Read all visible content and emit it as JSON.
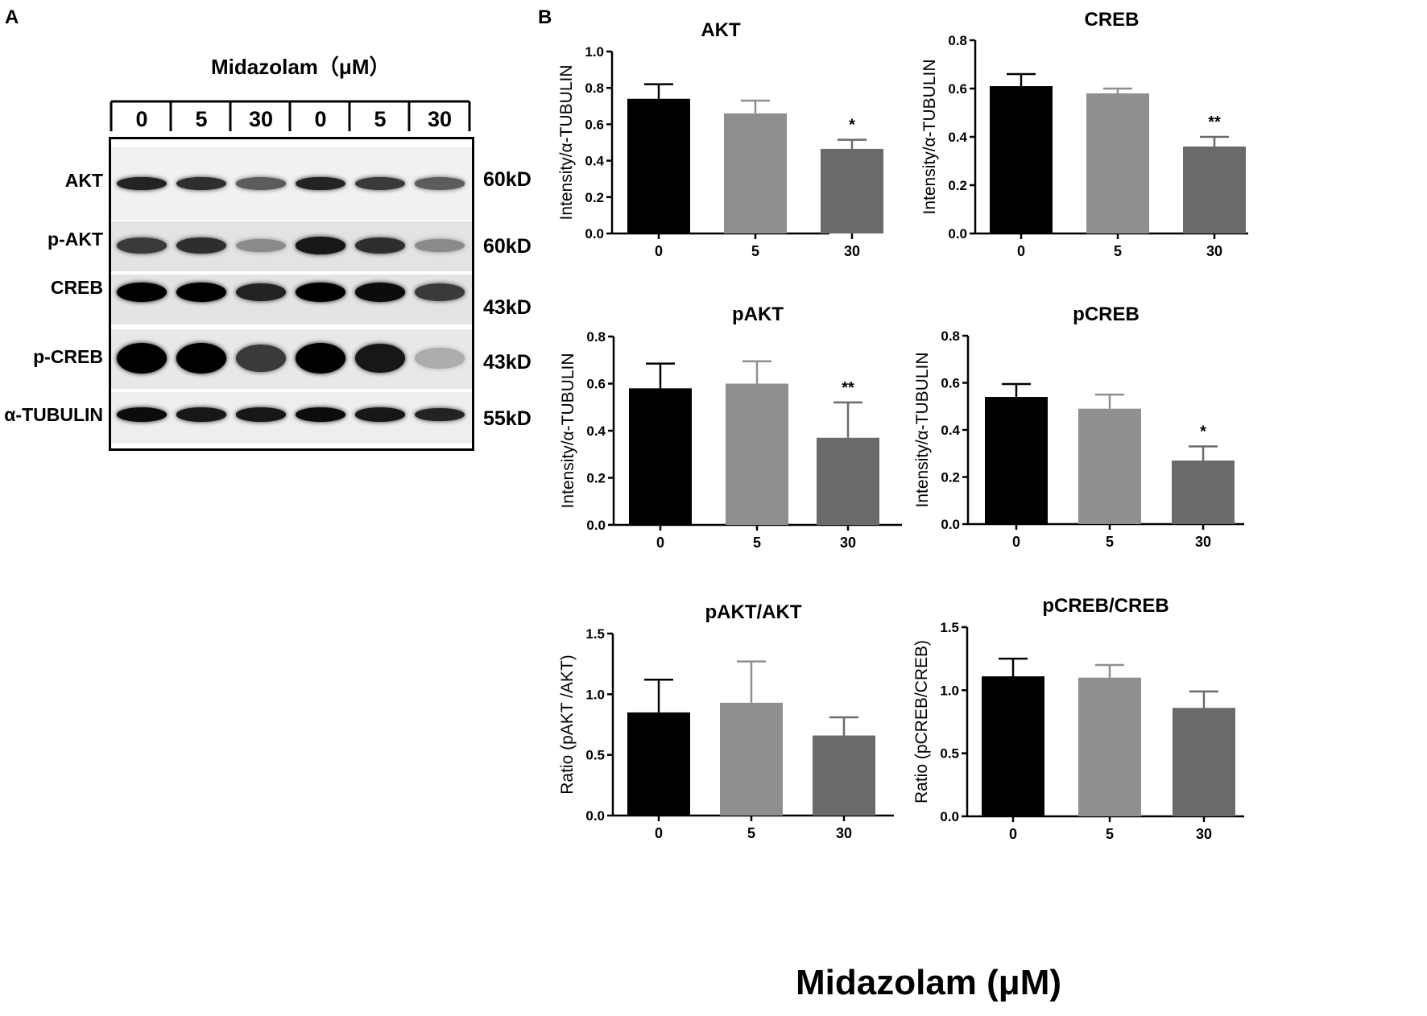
{
  "panels": {
    "a": "A",
    "b": "B"
  },
  "blot": {
    "treatment_label": "Midazolam（μM）",
    "lanes": [
      "0",
      "5",
      "30",
      "0",
      "5",
      "30"
    ],
    "rows": [
      {
        "protein": "AKT",
        "size": "60kD",
        "intensity": [
          0.85,
          0.8,
          0.6,
          0.85,
          0.75,
          0.6
        ]
      },
      {
        "protein": "p-AKT",
        "size": "60kD",
        "intensity": [
          0.75,
          0.8,
          0.4,
          0.9,
          0.8,
          0.4
        ]
      },
      {
        "protein": "CREB",
        "size": "43kD",
        "intensity": [
          1.0,
          1.0,
          0.85,
          1.0,
          0.95,
          0.75
        ]
      },
      {
        "protein": "p-CREB",
        "size": "43kD",
        "intensity": [
          1.0,
          1.0,
          0.75,
          1.0,
          0.9,
          0.25
        ]
      },
      {
        "protein": "α-TUBULIN",
        "size": "55kD",
        "intensity": [
          0.95,
          0.9,
          0.9,
          0.95,
          0.9,
          0.85
        ]
      }
    ]
  },
  "x_axis_title": "Midazolam (μM)",
  "chart_data": [
    {
      "type": "bar",
      "title": "AKT",
      "ylabel": "Intensity/α-TUBULIN",
      "categories": [
        "0",
        "5",
        "30"
      ],
      "values": [
        0.74,
        0.66,
        0.465
      ],
      "errors": [
        0.08,
        0.07,
        0.05
      ],
      "significance": [
        "",
        "",
        "*"
      ],
      "ylim": [
        0,
        1.0
      ],
      "yticks": [
        "0.0",
        "0.2",
        "0.4",
        "0.6",
        "0.8",
        "1.0"
      ],
      "colors": [
        "#000000",
        "#8f8f91",
        "#6a6a6a"
      ]
    },
    {
      "type": "bar",
      "title": "CREB",
      "ylabel": "Intensity/α-TUBULIN",
      "categories": [
        "0",
        "5",
        "30"
      ],
      "values": [
        0.61,
        0.58,
        0.36
      ],
      "errors": [
        0.05,
        0.02,
        0.04
      ],
      "significance": [
        "",
        "",
        "**"
      ],
      "ylim": [
        0,
        0.8
      ],
      "yticks": [
        "0.0",
        "0.2",
        "0.4",
        "0.6",
        "0.8"
      ],
      "colors": [
        "#000000",
        "#8f8f91",
        "#6a6a6a"
      ]
    },
    {
      "type": "bar",
      "title": "pAKT",
      "ylabel": "Intensity/α-TUBULIN",
      "categories": [
        "0",
        "5",
        "30"
      ],
      "values": [
        0.58,
        0.6,
        0.37
      ],
      "errors": [
        0.105,
        0.095,
        0.15
      ],
      "significance": [
        "",
        "",
        "**"
      ],
      "ylim": [
        0,
        0.8
      ],
      "yticks": [
        "0.0",
        "0.2",
        "0.4",
        "0.6",
        "0.8"
      ],
      "colors": [
        "#000000",
        "#8f8f91",
        "#6a6a6a"
      ]
    },
    {
      "type": "bar",
      "title": "pCREB",
      "ylabel": "Intensity/α-TUBULIN",
      "categories": [
        "0",
        "5",
        "30"
      ],
      "values": [
        0.54,
        0.49,
        0.27
      ],
      "errors": [
        0.055,
        0.06,
        0.06
      ],
      "significance": [
        "",
        "",
        "*"
      ],
      "ylim": [
        0,
        0.8
      ],
      "yticks": [
        "0.0",
        "0.2",
        "0.4",
        "0.6",
        "0.8"
      ],
      "colors": [
        "#000000",
        "#8f8f91",
        "#6a6a6a"
      ]
    },
    {
      "type": "bar",
      "title": "pAKT/AKT",
      "ylabel": "Ratio (pAKT /AKT)",
      "categories": [
        "0",
        "5",
        "30"
      ],
      "values": [
        0.85,
        0.93,
        0.66
      ],
      "errors": [
        0.27,
        0.34,
        0.15
      ],
      "significance": [
        "",
        "",
        ""
      ],
      "ylim": [
        0,
        1.5
      ],
      "yticks": [
        "0.0",
        "0.5",
        "1.0",
        "1.5"
      ],
      "colors": [
        "#000000",
        "#8f8f91",
        "#6a6a6a"
      ]
    },
    {
      "type": "bar",
      "title": "pCREB/CREB",
      "ylabel": "Ratio (pCREB/CREB)",
      "categories": [
        "0",
        "5",
        "30"
      ],
      "values": [
        1.11,
        1.1,
        0.86
      ],
      "errors": [
        0.14,
        0.1,
        0.13
      ],
      "significance": [
        "",
        "",
        ""
      ],
      "ylim": [
        0,
        1.5
      ],
      "yticks": [
        "0.0",
        "0.5",
        "1.0",
        "1.5"
      ],
      "colors": [
        "#000000",
        "#8f8f91",
        "#6a6a6a"
      ]
    }
  ]
}
